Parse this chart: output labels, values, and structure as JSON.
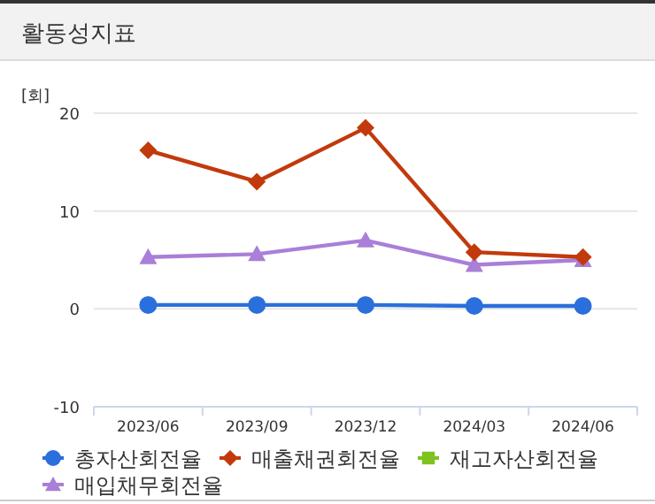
{
  "chart_data": {
    "type": "line",
    "title": "활동성지표",
    "ylabel": "[회]",
    "categories": [
      "2023/06",
      "2023/09",
      "2023/12",
      "2024/03",
      "2024/06"
    ],
    "series": [
      {
        "name": "총자산회전율",
        "color": "#2a6fdb",
        "marker": "circle",
        "values": [
          0.4,
          0.4,
          0.4,
          0.3,
          0.3
        ]
      },
      {
        "name": "매출채권회전율",
        "color": "#c23a0c",
        "marker": "diamond",
        "values": [
          16.2,
          13.0,
          18.5,
          5.8,
          5.3
        ]
      },
      {
        "name": "재고자산회전율",
        "color": "#7dc21e",
        "marker": "square",
        "values": [
          null,
          null,
          null,
          null,
          null
        ]
      },
      {
        "name": "매입채무회전율",
        "color": "#a97fd8",
        "marker": "triangle",
        "values": [
          5.3,
          5.6,
          7.0,
          4.5,
          5.0
        ]
      }
    ],
    "ylim": [
      -10,
      20
    ],
    "yticks": [
      -10,
      0,
      10,
      20
    ],
    "grid": "y",
    "legend": "bottom"
  }
}
